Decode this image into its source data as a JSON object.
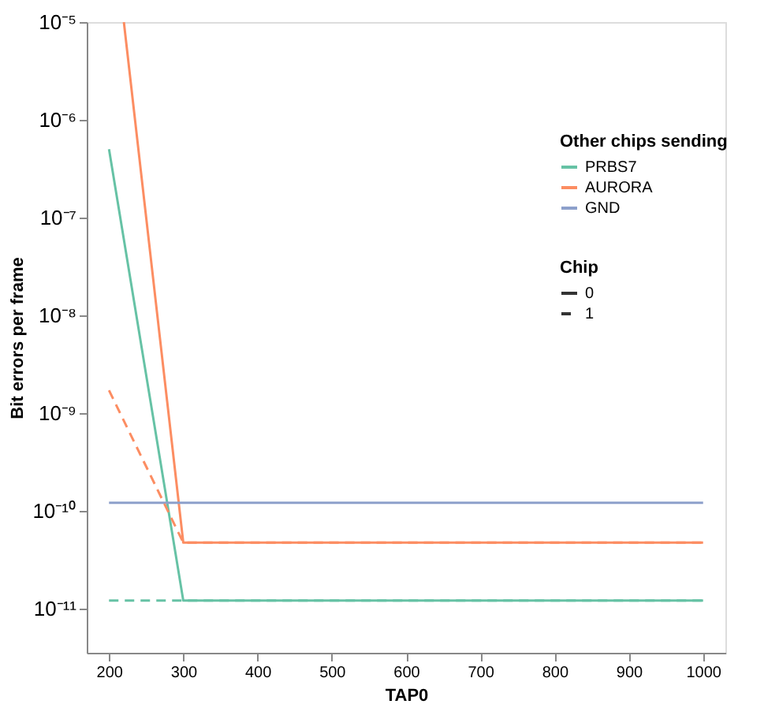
{
  "chart_data": {
    "type": "line",
    "xlabel": "TAP0",
    "ylabel": "Bit errors per frame",
    "legend_title": "Other chips sending",
    "annotations": [
      "Chip",
      "0",
      "1"
    ],
    "x": [
      200,
      300,
      400,
      500,
      600,
      700,
      800,
      900,
      1000
    ],
    "series": [
      {
        "name": "PRBS7",
        "color": "#66c2a5",
        "line_style": "solid",
        "values": [
          5e-07,
          1.2e-11,
          1.2e-11,
          1.2e-11,
          1.2e-11,
          1.2e-11,
          1.2e-11,
          1.2e-11,
          1.2e-11
        ]
      },
      {
        "name": "AURORA",
        "color": "#fc8d62",
        "line_style": "solid",
        "x": [
          220,
          300,
          400,
          500,
          600,
          700,
          800,
          900,
          1000
        ],
        "values": [
          1e-05,
          4.7e-11,
          4.7e-11,
          4.7e-11,
          4.7e-11,
          4.7e-11,
          4.7e-11,
          4.7e-11,
          4.7e-11
        ]
      },
      {
        "name": "GND",
        "color": "#8da0cb",
        "line_style": "solid",
        "values": [
          1.2e-10,
          1.2e-10,
          1.2e-10,
          1.2e-10,
          1.2e-10,
          1.2e-10,
          1.2e-10,
          1.2e-10,
          1.2e-10
        ]
      },
      {
        "color": "#66c2a5",
        "line_style": "dashed",
        "values": [
          1.2e-11,
          1.2e-11,
          1.2e-11,
          1.2e-11,
          1.2e-11,
          1.2e-11,
          1.2e-11,
          1.2e-11,
          1.2e-11
        ]
      },
      {
        "color": "#fc8d62",
        "line_style": "dashed",
        "values": [
          1.7e-09,
          4.7e-11,
          4.7e-11,
          4.7e-11,
          4.7e-11,
          4.7e-11,
          4.7e-11,
          4.7e-11,
          4.7e-11
        ]
      }
    ],
    "xlim": [
      170,
      1030
    ],
    "xticks": [
      200,
      300,
      400,
      500,
      600,
      700,
      800,
      900,
      1000
    ],
    "ylim": [
      3.5e-12,
      1e-05
    ],
    "log": true,
    "yticks": [
      {
        "value": 1e-11,
        "label": "10⁻¹¹"
      },
      {
        "value": 1e-10,
        "label": "10⁻¹⁰"
      },
      {
        "value": 1e-09,
        "label": "10⁻⁹"
      },
      {
        "value": 1e-08,
        "label": "10⁻⁸"
      },
      {
        "value": 1e-07,
        "label": "10⁻⁷"
      },
      {
        "value": 1e-06,
        "label": "10⁻⁶"
      },
      {
        "value": 1e-05,
        "label": "10⁻⁵"
      }
    ],
    "grid": false,
    "legend": "top right"
  }
}
